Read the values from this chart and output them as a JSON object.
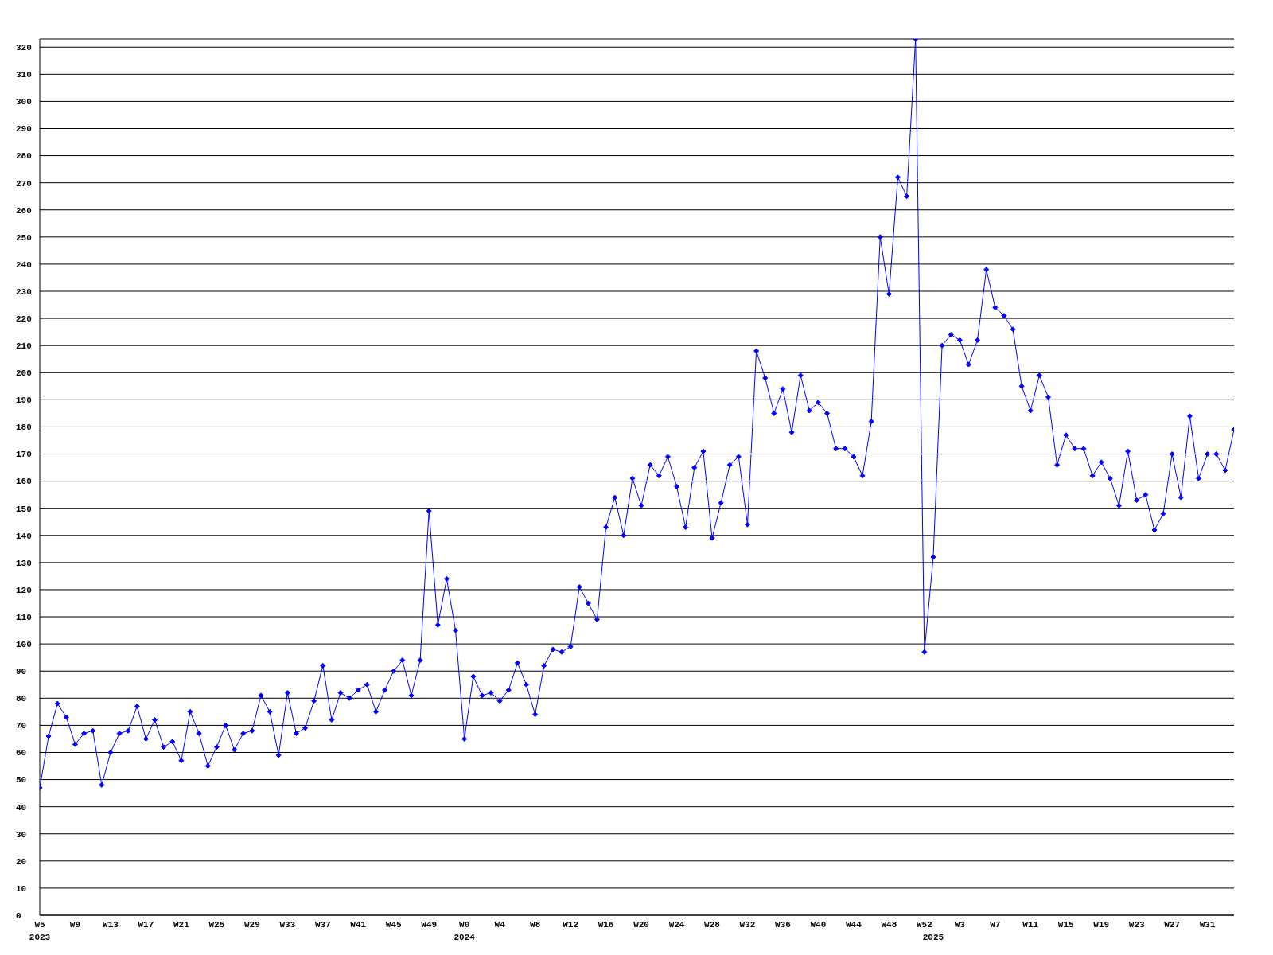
{
  "chart_data": {
    "type": "line",
    "categories": [
      "W5\n2023",
      null,
      null,
      null,
      "W9",
      null,
      null,
      null,
      "W13",
      null,
      null,
      null,
      "W17",
      null,
      null,
      null,
      "W21",
      null,
      null,
      null,
      "W25",
      null,
      null,
      null,
      "W29",
      null,
      null,
      null,
      "W33",
      null,
      null,
      null,
      "W37",
      null,
      null,
      null,
      "W41",
      null,
      null,
      null,
      "W45",
      null,
      null,
      null,
      "W49",
      null,
      null,
      null,
      "W0\n2024",
      null,
      null,
      null,
      "W4",
      null,
      null,
      null,
      "W8",
      null,
      null,
      null,
      "W12",
      null,
      null,
      null,
      "W16",
      null,
      null,
      null,
      "W20",
      null,
      null,
      null,
      "W24",
      null,
      null,
      null,
      "W28",
      null,
      null,
      null,
      "W32",
      null,
      null,
      null,
      "W36",
      null,
      null,
      null,
      "W40",
      null,
      null,
      null,
      "W44",
      null,
      null,
      null,
      "W48",
      null,
      null,
      null,
      "W52",
      "\n2025",
      null,
      null,
      "W3",
      null,
      null,
      null,
      "W7",
      null,
      null,
      null,
      "W11",
      null,
      null,
      null,
      "W15",
      null,
      null,
      null,
      "W19",
      null,
      null,
      null,
      "W23",
      null,
      null,
      null,
      "W27",
      null,
      null,
      null,
      "W31",
      null,
      null,
      null
    ],
    "values": [
      47,
      66,
      78,
      73,
      63,
      67,
      68,
      48,
      60,
      67,
      68,
      77,
      65,
      72,
      62,
      64,
      57,
      75,
      67,
      55,
      62,
      70,
      61,
      67,
      68,
      81,
      75,
      59,
      82,
      67,
      69,
      79,
      92,
      72,
      82,
      80,
      83,
      85,
      75,
      83,
      90,
      94,
      81,
      94,
      149,
      107,
      124,
      105,
      65,
      88,
      81,
      82,
      79,
      83,
      93,
      85,
      74,
      92,
      98,
      97,
      99,
      121,
      115,
      109,
      143,
      154,
      140,
      161,
      151,
      166,
      162,
      169,
      158,
      143,
      165,
      171,
      139,
      152,
      166,
      169,
      144,
      208,
      198,
      185,
      194,
      178,
      199,
      186,
      189,
      185,
      172,
      172,
      169,
      162,
      182,
      250,
      229,
      272,
      265,
      323,
      97,
      132,
      210,
      214,
      212,
      203,
      212,
      238,
      224,
      221,
      216,
      195,
      186,
      199,
      191,
      166,
      177,
      172,
      172,
      162,
      167,
      161,
      151,
      171,
      153,
      155,
      142,
      148,
      170,
      154,
      184,
      161,
      170,
      170,
      164,
      179
    ],
    "color": "#0000ff",
    "ylim": [
      0,
      323
    ],
    "yticks": [
      0,
      10,
      20,
      30,
      40,
      50,
      60,
      70,
      80,
      90,
      100,
      110,
      120,
      130,
      140,
      150,
      160,
      170,
      180,
      190,
      200,
      210,
      220,
      230,
      240,
      250,
      260,
      270,
      280,
      290,
      300,
      310,
      320
    ],
    "grid": "y",
    "marker": "diamond",
    "line_style": "solid"
  }
}
